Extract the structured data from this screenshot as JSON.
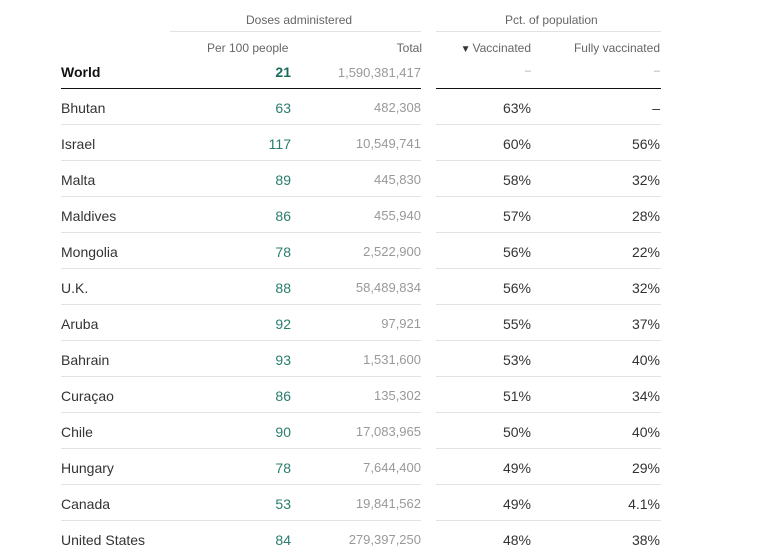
{
  "chart_data": {
    "type": "table",
    "column_groups": [
      {
        "label": "Doses administered"
      },
      {
        "label": "Pct. of population"
      }
    ],
    "columns": {
      "per_100": "Per 100 people",
      "total": "Total",
      "vaccinated": "Vaccinated",
      "fully": "Fully vaccinated"
    },
    "sort_indicator": "▼",
    "world": {
      "name": "World",
      "per_100": "21",
      "total": "1,590,381,417",
      "vaccinated": "–",
      "fully": "–"
    },
    "rows": [
      {
        "name": "Bhutan",
        "per_100": "63",
        "total": "482,308",
        "vaccinated": "63%",
        "fully": "–"
      },
      {
        "name": "Israel",
        "per_100": "117",
        "total": "10,549,741",
        "vaccinated": "60%",
        "fully": "56%"
      },
      {
        "name": "Malta",
        "per_100": "89",
        "total": "445,830",
        "vaccinated": "58%",
        "fully": "32%"
      },
      {
        "name": "Maldives",
        "per_100": "86",
        "total": "455,940",
        "vaccinated": "57%",
        "fully": "28%"
      },
      {
        "name": "Mongolia",
        "per_100": "78",
        "total": "2,522,900",
        "vaccinated": "56%",
        "fully": "22%"
      },
      {
        "name": "U.K.",
        "per_100": "88",
        "total": "58,489,834",
        "vaccinated": "56%",
        "fully": "32%"
      },
      {
        "name": "Aruba",
        "per_100": "92",
        "total": "97,921",
        "vaccinated": "55%",
        "fully": "37%"
      },
      {
        "name": "Bahrain",
        "per_100": "93",
        "total": "1,531,600",
        "vaccinated": "53%",
        "fully": "40%"
      },
      {
        "name": "Curaçao",
        "per_100": "86",
        "total": "135,302",
        "vaccinated": "51%",
        "fully": "34%"
      },
      {
        "name": "Chile",
        "per_100": "90",
        "total": "17,083,965",
        "vaccinated": "50%",
        "fully": "40%"
      },
      {
        "name": "Hungary",
        "per_100": "78",
        "total": "7,644,400",
        "vaccinated": "49%",
        "fully": "29%"
      },
      {
        "name": "Canada",
        "per_100": "53",
        "total": "19,841,562",
        "vaccinated": "49%",
        "fully": "4.1%"
      },
      {
        "name": "United States",
        "per_100": "84",
        "total": "279,397,250",
        "vaccinated": "48%",
        "fully": "38%"
      }
    ]
  }
}
